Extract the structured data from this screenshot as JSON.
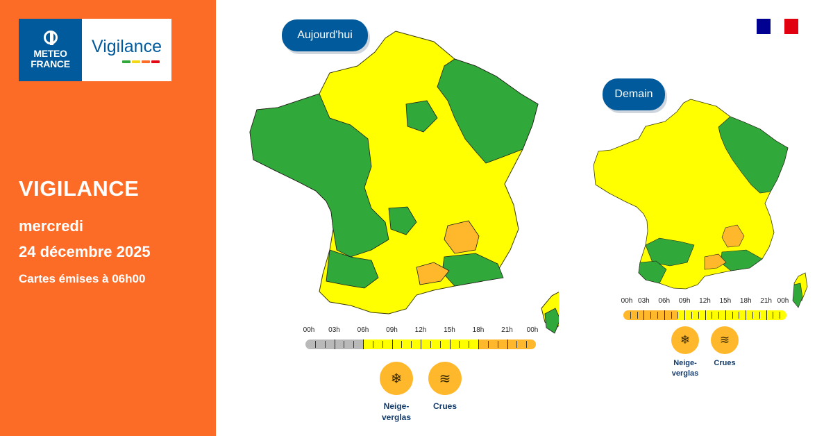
{
  "brand": {
    "logo_line1": "METEO",
    "logo_line2": "FRANCE",
    "product": "Vigilance"
  },
  "colors": {
    "panel": "#fc6c26",
    "navy": "#005a9c",
    "green": "#31a83a",
    "yellow": "#ffff00",
    "orange": "#ffb82b",
    "red": "#e30613",
    "grey": "#b9b9b9"
  },
  "panel": {
    "title": "VIGILANCE",
    "day": "mercredi",
    "date": "24 décembre 2025",
    "issued": "Cartes émises à 06h00"
  },
  "today": {
    "label": "Aujourd'hui",
    "timeline_hours": [
      "00h",
      "03h",
      "06h",
      "09h",
      "12h",
      "15h",
      "18h",
      "21h",
      "00h"
    ],
    "timeline_levels": [
      "grey",
      "grey",
      "grey",
      "grey",
      "grey",
      "grey",
      "yellow",
      "yellow",
      "yellow",
      "yellow",
      "yellow",
      "yellow",
      "yellow",
      "yellow",
      "yellow",
      "yellow",
      "yellow",
      "yellow",
      "orange",
      "orange",
      "orange",
      "orange",
      "orange",
      "orange"
    ],
    "phenomena": [
      {
        "icon": "snow-ice-icon",
        "glyph": "❄",
        "label": "Neige-verglas"
      },
      {
        "icon": "flood-icon",
        "glyph": "≋",
        "label": "Crues"
      }
    ]
  },
  "tomorrow": {
    "label": "Demain",
    "timeline_hours": [
      "00h",
      "03h",
      "06h",
      "09h",
      "12h",
      "15h",
      "18h",
      "21h",
      "00h"
    ],
    "timeline_levels": [
      "orange",
      "orange",
      "orange",
      "orange",
      "orange",
      "orange",
      "orange",
      "orange",
      "yellow",
      "yellow",
      "yellow",
      "yellow",
      "yellow",
      "yellow",
      "yellow",
      "yellow",
      "yellow",
      "yellow",
      "yellow",
      "yellow",
      "yellow",
      "yellow",
      "yellow",
      "yellow"
    ],
    "phenomena": [
      {
        "icon": "snow-ice-icon",
        "glyph": "❄",
        "label": "Neige-verglas"
      },
      {
        "icon": "flood-icon",
        "glyph": "≋",
        "label": "Crues"
      }
    ]
  }
}
